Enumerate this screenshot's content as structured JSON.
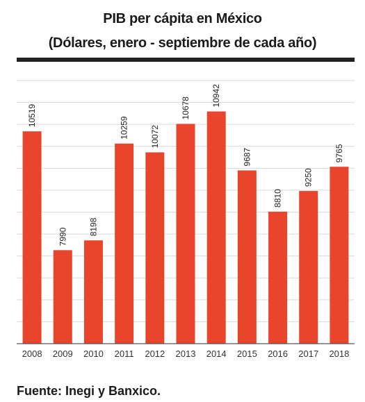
{
  "chart_data": {
    "type": "bar",
    "title": "PIB per cápita en México",
    "subtitle": "(Dólares, enero - septiembre de cada año)",
    "categories": [
      "2008",
      "2009",
      "2010",
      "2011",
      "2012",
      "2013",
      "2014",
      "2015",
      "2016",
      "2017",
      "2018"
    ],
    "values": [
      10519,
      7990,
      8198,
      10259,
      10072,
      10678,
      10942,
      9687,
      8810,
      9250,
      9765
    ],
    "xlabel": "",
    "ylabel": "",
    "ylim": [
      6000,
      11600
    ],
    "grid": true,
    "bar_color": "#e8452c",
    "source": "Fuente: Inegi y Banxico."
  }
}
